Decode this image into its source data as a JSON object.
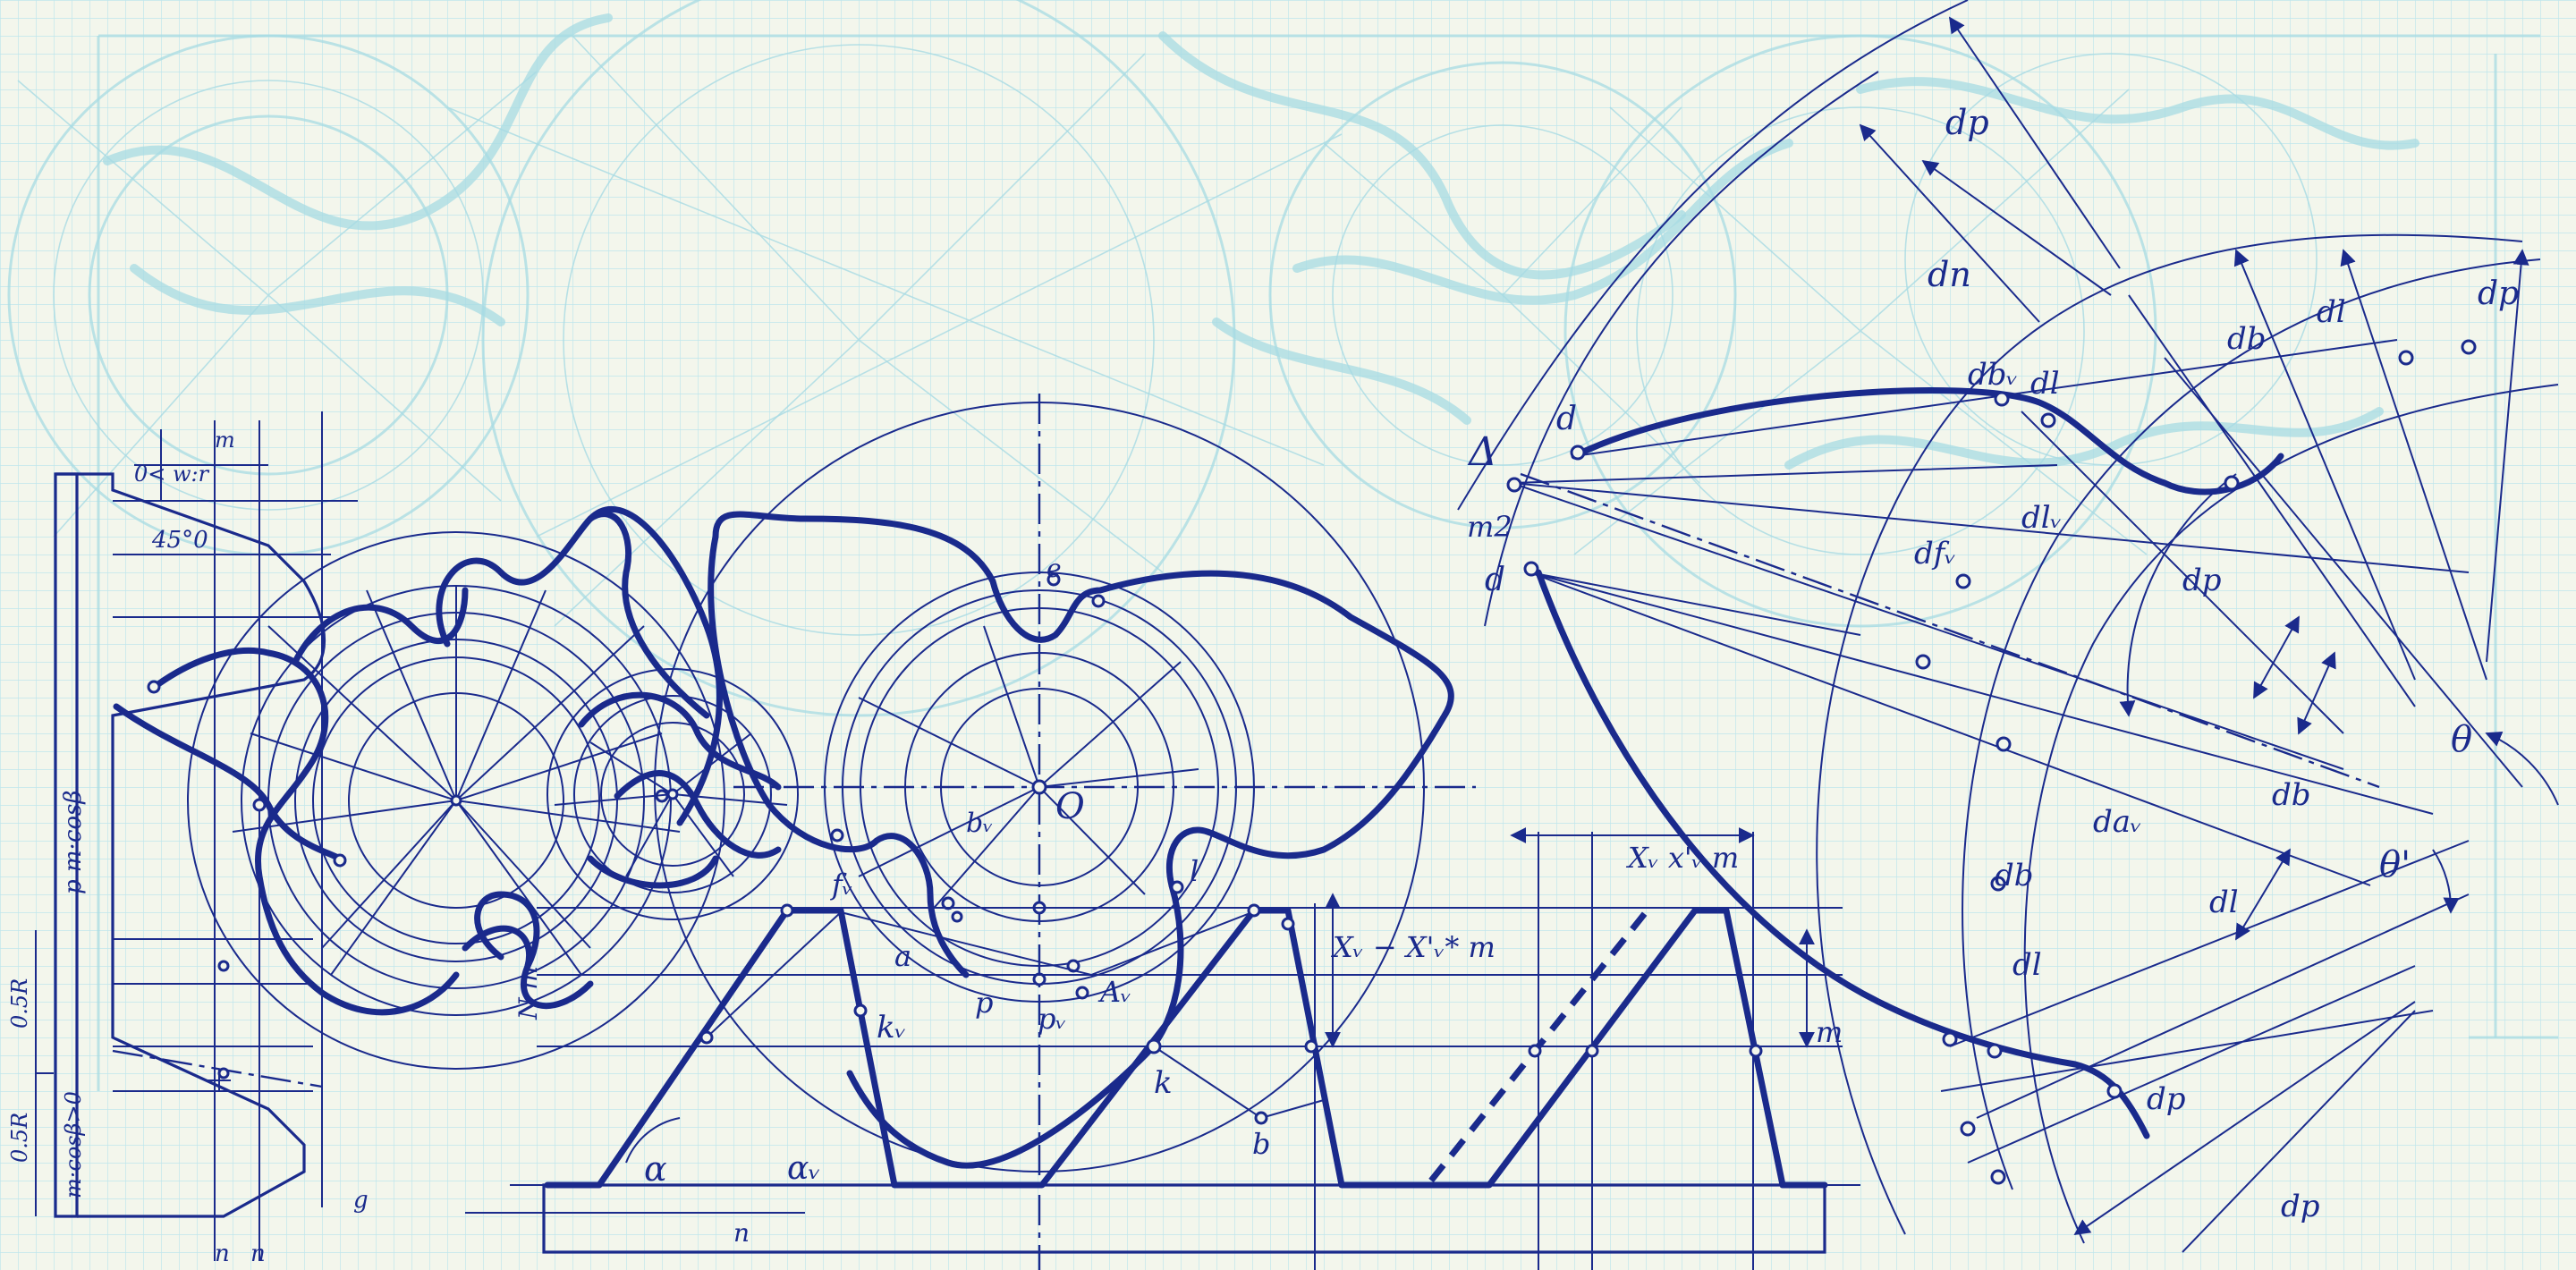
{
  "colors": {
    "paper": "#f3f6ec",
    "grid": "#bfe6ec",
    "ghost_lines": "#a7dbe3",
    "ink": "#1a2a8c"
  },
  "labels": {
    "origin": "O",
    "delta": "Δ",
    "theta": "θ",
    "theta_prime": "θ'",
    "alpha": "α",
    "alpha_v": "αᵥ",
    "dp_top": "dp",
    "dn_top": "dn",
    "d_upper": "d",
    "d_lower": "d",
    "db_v": "dbᵥ",
    "dl": "dl",
    "dfv": "dfᵥ",
    "dp_right": "dp",
    "dl_v": "dlᵥ",
    "db_a": "db",
    "dl_b": "dl",
    "dp_b": "dp",
    "db_c": "db",
    "dp_c": "dp",
    "dp_d": "dp",
    "dl_c": "dl",
    "da_v": "daᵥ",
    "dl_d": "dl",
    "db_d": "db",
    "x_dim": "Xᵥ x'ᵥ m",
    "xv_formula": "Xᵥ − X'ᵥ* m",
    "n_mark": "n",
    "n_mark2": "n",
    "k": "k",
    "kv": "kᵥ",
    "b": "b",
    "p_v": "pᵥ",
    "a_v": "Aᵥ",
    "p": "p",
    "l": "l",
    "f_v": "fᵥ",
    "b_v": "bᵥ",
    "a_lbl": "a",
    "n_lbl": "n",
    "e_lbl": "e",
    "m_lbl": "m",
    "ma_lbl": "m2",
    "cos_formula": "p  m·cosβ",
    "cos_formula2": "m·cosβ>0",
    "half_r": "0.5R",
    "half_r2": "0.5R",
    "angle_45": "45°0",
    "u_small": "0< w:r",
    "g_small": "g",
    "m_small": "m",
    "mid_m": "N m"
  }
}
